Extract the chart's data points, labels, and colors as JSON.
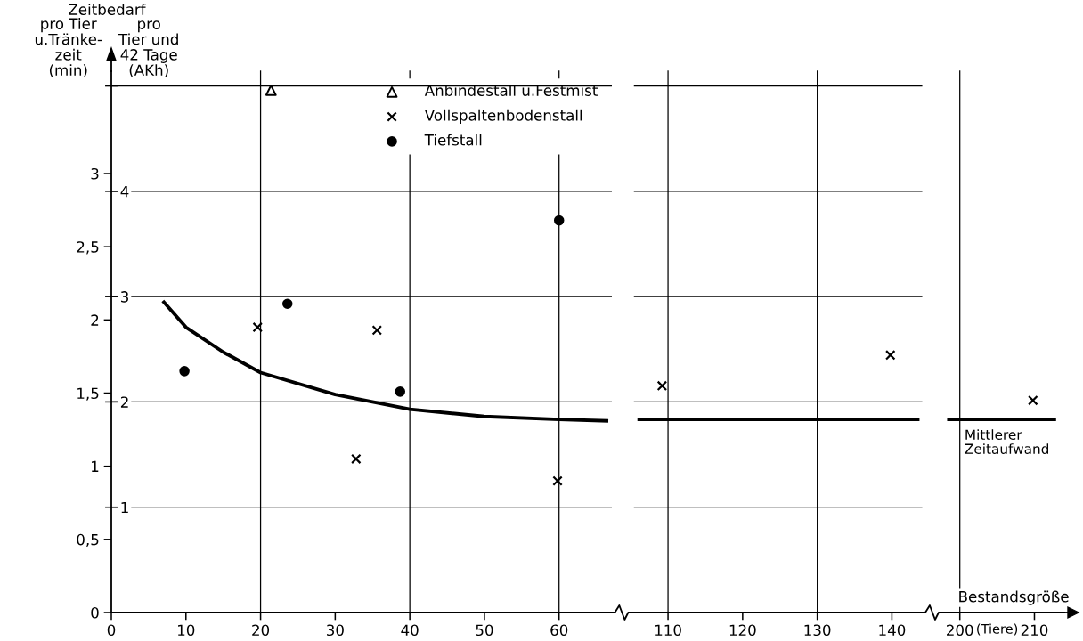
{
  "chart_data": [
    {
      "type": "scatter",
      "title": "Zeitbedarf",
      "ylabel": "pro Tier\nu.Tränke-\nzeit\n(min)",
      "y2label": "pro\nTier und\n42 Tage\n(AKh)",
      "xlim": [
        0,
        67
      ],
      "xticks": [
        0,
        10,
        20,
        30,
        40,
        50,
        60
      ],
      "ylim": [
        0,
        3.7
      ],
      "yticks": [
        0,
        {
          "value": 0.5,
          "label": "0,5"
        },
        1,
        {
          "value": 1.5,
          "label": "1,5"
        },
        2,
        {
          "value": 2.5,
          "label": "2,5"
        },
        3
      ],
      "y2lim": [
        0,
        5.14
      ],
      "y2ticks": [
        1,
        2,
        3,
        4,
        {
          "value": 5,
          "label": null
        }
      ],
      "legend": "top right",
      "ref_lines": [
        {
          "axis": "x",
          "value": 20,
          "color": "#000000"
        },
        {
          "axis": "x",
          "value": 40,
          "color": "#000000"
        },
        {
          "axis": "x",
          "value": 60,
          "color": "#000000"
        },
        {
          "axis": "y2",
          "value": 1,
          "color": "#000000"
        },
        {
          "axis": "y2",
          "value": 2,
          "color": "#000000"
        },
        {
          "axis": "y2",
          "value": 3,
          "color": "#000000"
        },
        {
          "axis": "y2",
          "value": 4,
          "color": "#000000"
        },
        {
          "axis": "y2",
          "value": 5,
          "color": "#000000"
        }
      ],
      "series": [
        {
          "name": "Anbindestall u.Festmist",
          "color": "#000000",
          "marker": "triangle",
          "x": [
            21.4
          ],
          "values": [
            3.57
          ]
        },
        {
          "name": "Vollspaltenbodenstall",
          "color": "#000000",
          "marker": "cross",
          "x": [
            19.6,
            32.8,
            35.6,
            59.8
          ],
          "values": [
            1.95,
            1.05,
            1.93,
            0.9
          ]
        },
        {
          "name": "Tiefstall",
          "color": "#000000",
          "marker": "circle",
          "x": [
            9.8,
            23.6,
            38.7,
            60
          ],
          "values": [
            1.65,
            2.11,
            1.51,
            2.68
          ]
        },
        {
          "type": "line",
          "color": "#000000",
          "marker": "none",
          "line_style": "solid",
          "x": [
            6.9,
            10,
            15,
            20,
            30,
            40,
            50,
            60,
            66.6
          ],
          "values": [
            2.13,
            1.95,
            1.78,
            1.64,
            1.49,
            1.39,
            1.34,
            1.32,
            1.31
          ]
        }
      ]
    },
    {
      "type": "scatter",
      "tick_labels": "x",
      "xlim": [
        105.5,
        144
      ],
      "xticks": [
        110,
        120,
        130,
        140
      ],
      "ylim": [
        0,
        3.7
      ],
      "y2lim": [
        0,
        5.14
      ],
      "ref_lines": [
        {
          "axis": "x",
          "value": 110,
          "color": "#000000"
        },
        {
          "axis": "x",
          "value": 130,
          "color": "#000000"
        },
        {
          "axis": "y2",
          "value": 1,
          "color": "#000000"
        },
        {
          "axis": "y2",
          "value": 2,
          "color": "#000000"
        },
        {
          "axis": "y2",
          "value": 3,
          "color": "#000000"
        },
        {
          "axis": "y2",
          "value": 4,
          "color": "#000000"
        },
        {
          "axis": "y2",
          "value": 5,
          "color": "#000000"
        }
      ],
      "series": [
        {
          "color": "#000000",
          "marker": "cross",
          "x": [
            109.2,
            139.8
          ],
          "values": [
            1.55,
            1.76
          ]
        },
        {
          "type": "line",
          "color": "#000000",
          "marker": "none",
          "line_style": "solid",
          "x": [
            105.9,
            143.7
          ],
          "values": [
            1.32,
            1.32
          ]
        }
      ]
    },
    {
      "type": "scatter",
      "tick_labels": "x",
      "xlabel": "Bestandsgröße",
      "annotations": [
        "(Tiere)"
      ],
      "xlim": [
        198,
        214
      ],
      "xticks": [
        200,
        210
      ],
      "ylim": [
        0,
        3.7
      ],
      "ref_lines": [
        {
          "axis": "x",
          "value": 200,
          "color": "#000000"
        }
      ],
      "series": [
        {
          "color": "#000000",
          "marker": "cross",
          "x": [
            209.8
          ],
          "values": [
            1.45
          ]
        },
        {
          "type": "line",
          "name": "Mittlerer Zeitaufwand",
          "color": "#000000",
          "marker": "none",
          "line_style": "solid",
          "x": [
            198.3,
            212.9
          ],
          "values": [
            1.32,
            1.32
          ]
        }
      ]
    }
  ]
}
